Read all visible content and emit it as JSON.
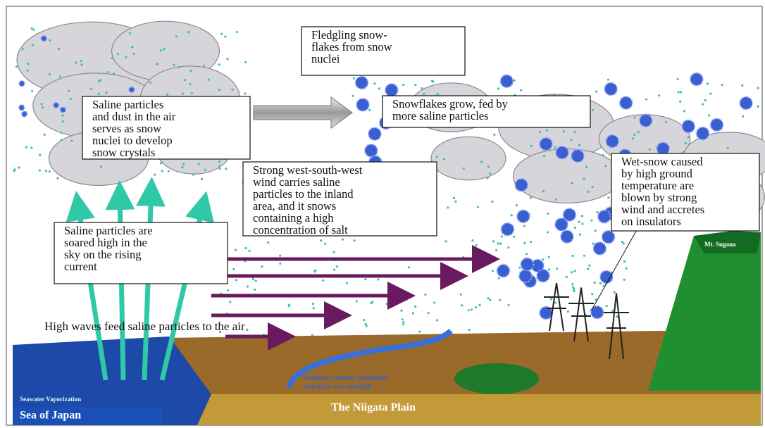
{
  "boxes": [
    {
      "lines": [
        "Fledgling   snow-",
        "flakes from snow",
        "nuclei"
      ]
    },
    {
      "lines": [
        "Snowflakes grow, fed by",
        "more saline particles"
      ]
    },
    {
      "lines": [
        "Saline particles",
        "and dust in the air",
        "serves as snow",
        "nuclei to develop",
        "snow crystals"
      ]
    },
    {
      "lines": [
        "Strong west-south-west",
        "wind carries saline",
        "particles to the inland",
        "area, and it snows",
        "containing a high",
        "concentration of salt"
      ]
    },
    {
      "lines": [
        "Wet-snow caused",
        "by high ground",
        "temperature are",
        "blown by strong",
        "wind and accretes",
        "on insulators"
      ]
    },
    {
      "lines": [
        "Saline particles are",
        "soared high in the",
        "sky on the rising",
        "current"
      ]
    }
  ],
  "labels": {
    "high_waves": "High waves feed saline particles to the air",
    "vaporization": "Seawater Vaporization",
    "sea": "Sea of Japan",
    "plain": "The Niigata Plain",
    "mountain": "Mt. Sugana",
    "weather_lines": [
      "Ambient weather conditions",
      "suited for wet snowfall"
    ]
  }
}
